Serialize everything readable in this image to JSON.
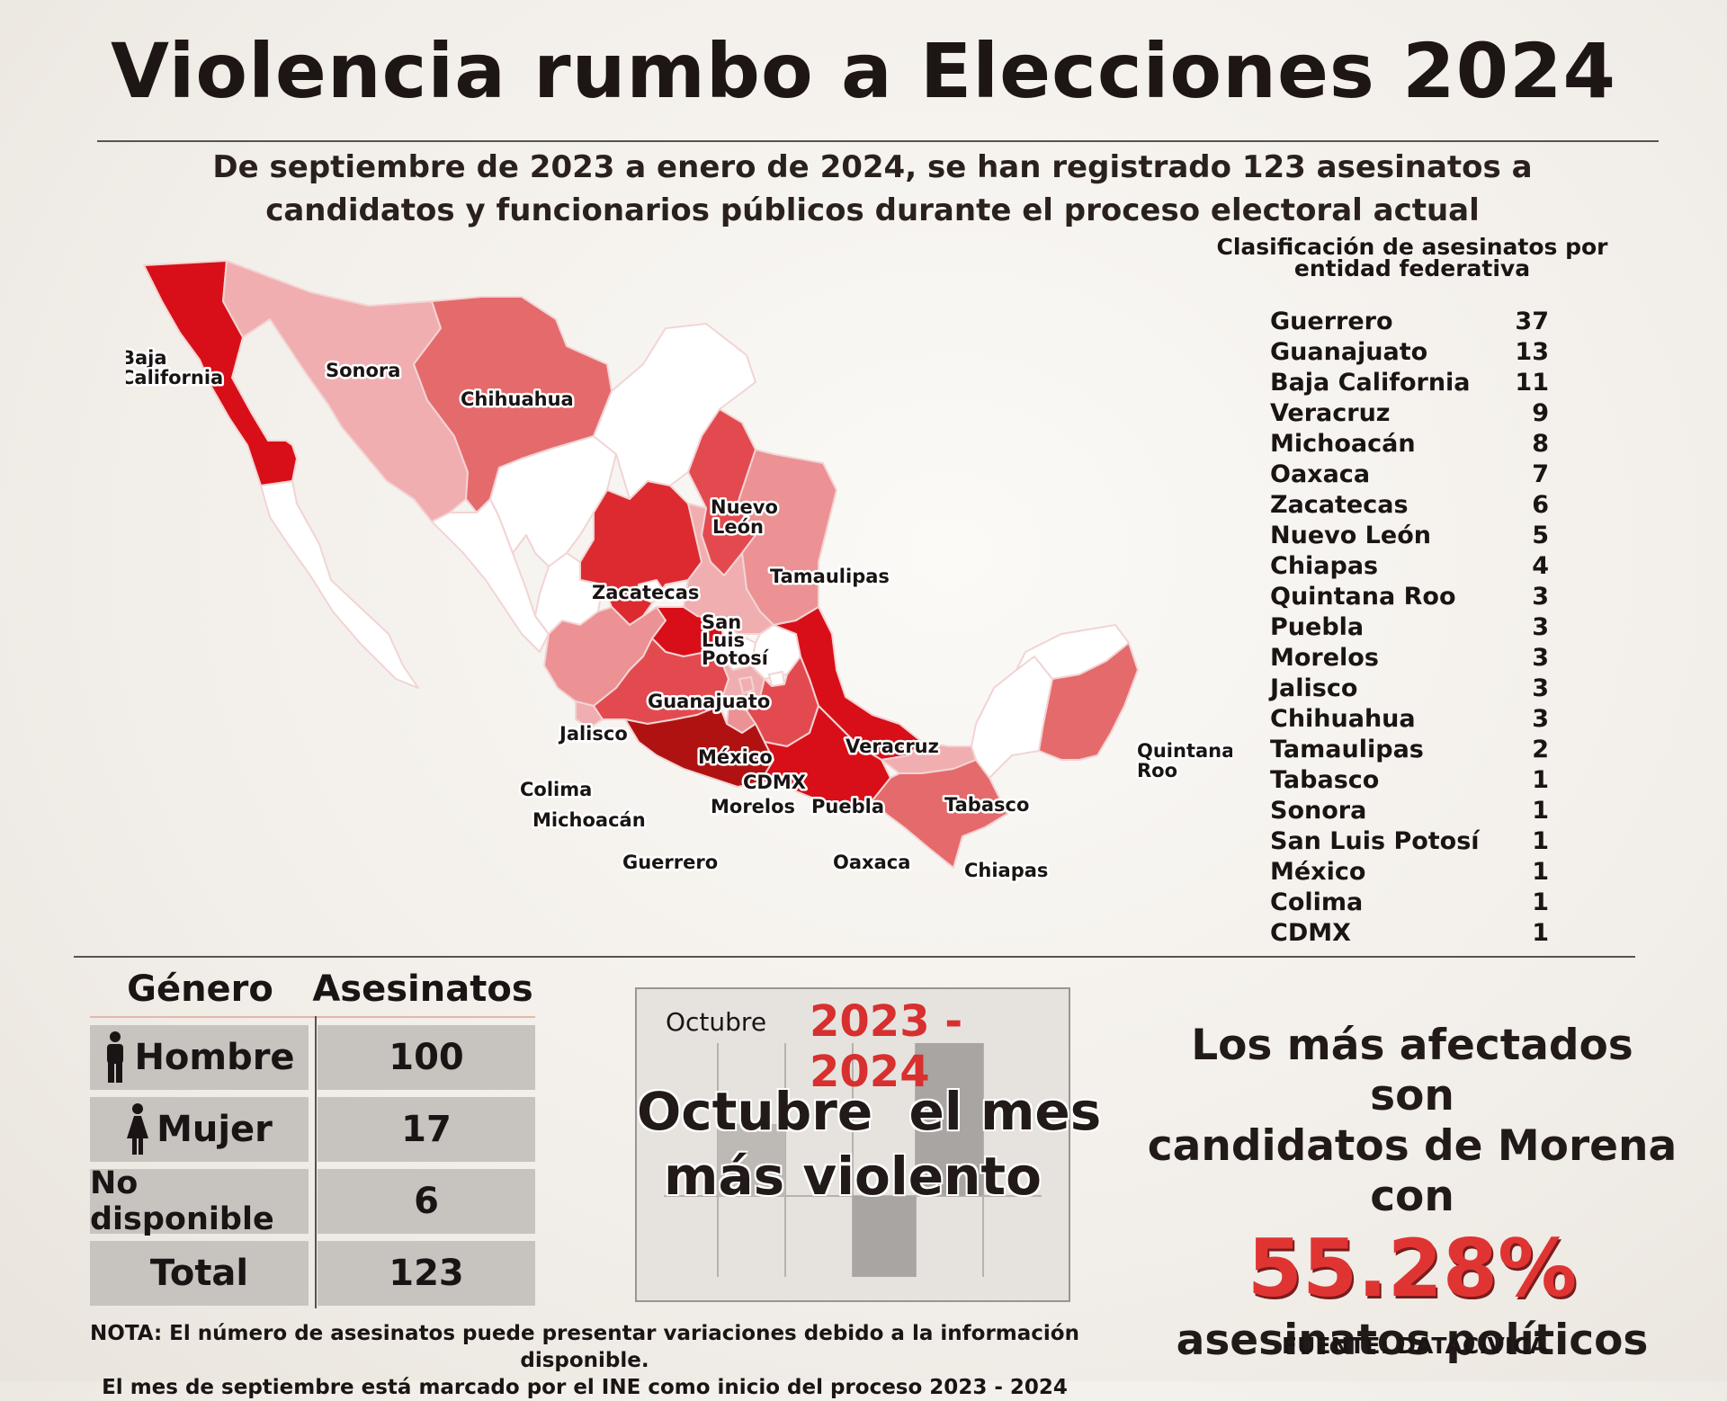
{
  "title": "Violencia rumbo a Elecciones 2024",
  "subtitle": "De septiembre de 2023 a enero de 2024, se han registrado 123 asesinatos a candidatos y funcionarios públicos durante el proceso electoral actual",
  "ranking": {
    "title": "Clasificación de asesinatos por entidad federativa",
    "items": [
      {
        "state": "Guerrero",
        "count": "37"
      },
      {
        "state": "Guanajuato",
        "count": "13"
      },
      {
        "state": "Baja California",
        "count": "11"
      },
      {
        "state": "Veracruz",
        "count": "9"
      },
      {
        "state": "Michoacán",
        "count": "8"
      },
      {
        "state": "Oaxaca",
        "count": "7"
      },
      {
        "state": "Zacatecas",
        "count": "6"
      },
      {
        "state": "Nuevo León",
        "count": "5"
      },
      {
        "state": "Chiapas",
        "count": "4"
      },
      {
        "state": "Quintana Roo",
        "count": "3"
      },
      {
        "state": "Puebla",
        "count": "3"
      },
      {
        "state": "Morelos",
        "count": "3"
      },
      {
        "state": "Jalisco",
        "count": "3"
      },
      {
        "state": "Chihuahua",
        "count": "3"
      },
      {
        "state": "Tamaulipas",
        "count": "2"
      },
      {
        "state": "Tabasco",
        "count": "1"
      },
      {
        "state": "Sonora",
        "count": "1"
      },
      {
        "state": "San Luis Potosí",
        "count": "1"
      },
      {
        "state": "México",
        "count": "1"
      },
      {
        "state": "Colima",
        "count": "1"
      },
      {
        "state": "CDMX",
        "count": "1"
      }
    ]
  },
  "map_labels": {
    "baja_california": [
      "Baja",
      "California"
    ],
    "sonora": "Sonora",
    "chihuahua": "Chihuahua",
    "nuevo_leon": [
      "Nuevo",
      "León"
    ],
    "tamaulipas": "Tamaulipas",
    "zacatecas": "Zacatecas",
    "san_luis_potosi": [
      "San",
      "Luis",
      "Potosí"
    ],
    "guanajuato": "Guanajuato",
    "jalisco": "Jalisco",
    "mexico": "México",
    "cdmx": "CDMX",
    "veracruz": "Veracruz",
    "colima": "Colima",
    "michoacan": "Michoacán",
    "morelos": "Morelos",
    "puebla": "Puebla",
    "tabasco": "Tabasco",
    "guerrero": "Guerrero",
    "oaxaca": "Oaxaca",
    "chiapas": "Chiapas",
    "quintana_roo": [
      "Quintana",
      "Roo"
    ]
  },
  "colors": {
    "none": "#ffffff",
    "level1": "#f1aeb0",
    "level2": "#ec9294",
    "level3": "#e56a6c",
    "level4": "#e34a4f",
    "level5": "#dc2a30",
    "level6": "#d80f18",
    "level7": "#b01212",
    "accent": "#d7302f",
    "border": "#f2d4d4"
  },
  "gender_table": {
    "headers": [
      "Género",
      "Asesinatos"
    ],
    "rows": [
      {
        "label": "Hombre",
        "value": "100",
        "icon": "male-icon"
      },
      {
        "label": "Mujer",
        "value": "17",
        "icon": "female-icon"
      },
      {
        "label": "No disponible",
        "value": "6"
      },
      {
        "label": "Total",
        "value": "123"
      }
    ]
  },
  "month_box": {
    "month_label": "Octubre",
    "range": "2023 - 2024",
    "headline_line1": "Octubre  el mes",
    "headline_line2": "más violento"
  },
  "morena": {
    "line1": "Los más afectados son",
    "line2": "candidatos de Morena con",
    "percent": "55.28%",
    "line4": "asesinatos políticos"
  },
  "note": {
    "line1": "NOTA: El número de asesinatos puede presentar variaciones debido a la información disponible.",
    "line2": "El mes de septiembre está marcado por el INE como inicio del proceso 2023 - 2024"
  },
  "source": "FUENTE: DATACÍVICA"
}
